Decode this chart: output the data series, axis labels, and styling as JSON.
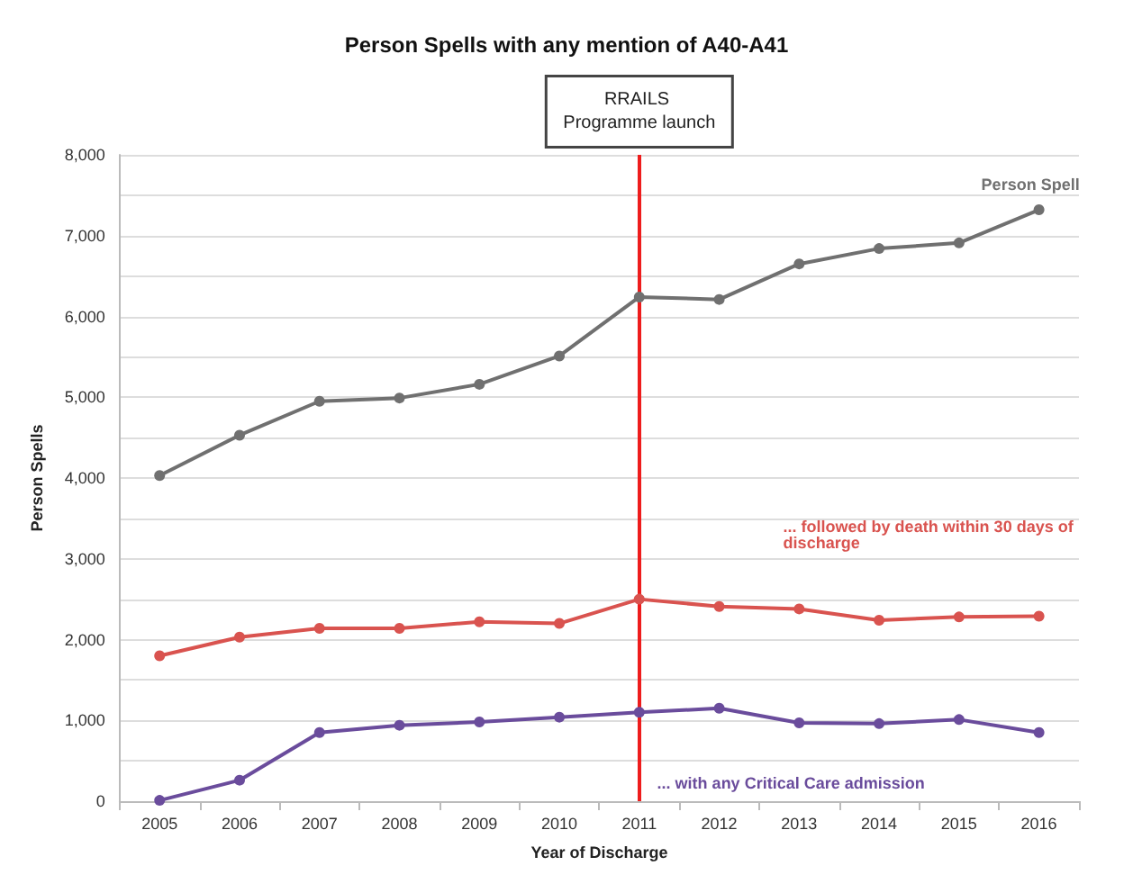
{
  "chart_data": {
    "type": "line",
    "title": "Person Spells with any mention of A40-A41",
    "xlabel": "Year of Discharge",
    "ylabel": "Person Spells",
    "categories": [
      "2005",
      "2006",
      "2007",
      "2008",
      "2009",
      "2010",
      "2011",
      "2012",
      "2013",
      "2014",
      "2015",
      "2016"
    ],
    "series": [
      {
        "name": "Person Spell",
        "color": "#707070",
        "values": [
          4030,
          4530,
          4950,
          4990,
          5160,
          5510,
          6240,
          6210,
          6650,
          6840,
          6910,
          7320
        ]
      },
      {
        "name": "... followed by death within 30 days of discharge",
        "color": "#d9534f",
        "values": [
          1800,
          2030,
          2140,
          2140,
          2220,
          2200,
          2500,
          2410,
          2380,
          2240,
          2280,
          2290
        ]
      },
      {
        "name": "... with any Critical Care admission",
        "color": "#6a4c9c",
        "values": [
          10,
          260,
          850,
          940,
          980,
          1040,
          1100,
          1150,
          970,
          960,
          1010,
          850
        ]
      }
    ],
    "ylim": [
      0,
      8000
    ],
    "yticks": [
      {
        "value": 0,
        "label": "0"
      },
      {
        "value": 500,
        "label": null
      },
      {
        "value": 1000,
        "label": "1,000"
      },
      {
        "value": 1500,
        "label": null
      },
      {
        "value": 2000,
        "label": "2,000"
      },
      {
        "value": 2500,
        "label": null
      },
      {
        "value": 3000,
        "label": "3,000"
      },
      {
        "value": 3500,
        "label": null
      },
      {
        "value": 4000,
        "label": "4,000"
      },
      {
        "value": 4500,
        "label": null
      },
      {
        "value": 5000,
        "label": "5,000"
      },
      {
        "value": 5500,
        "label": null
      },
      {
        "value": 6000,
        "label": "6,000"
      },
      {
        "value": 6500,
        "label": null
      },
      {
        "value": 7000,
        "label": "7,000"
      },
      {
        "value": 7500,
        "label": null
      },
      {
        "value": 8000,
        "label": "8,000"
      }
    ],
    "ref_lines": [
      {
        "axis": "x",
        "value": "2011",
        "label": "RRAILS Programme launch",
        "color": "#ee1c1c"
      }
    ],
    "grid": "y",
    "legend": false,
    "marker": "circle",
    "line_style": "solid"
  }
}
